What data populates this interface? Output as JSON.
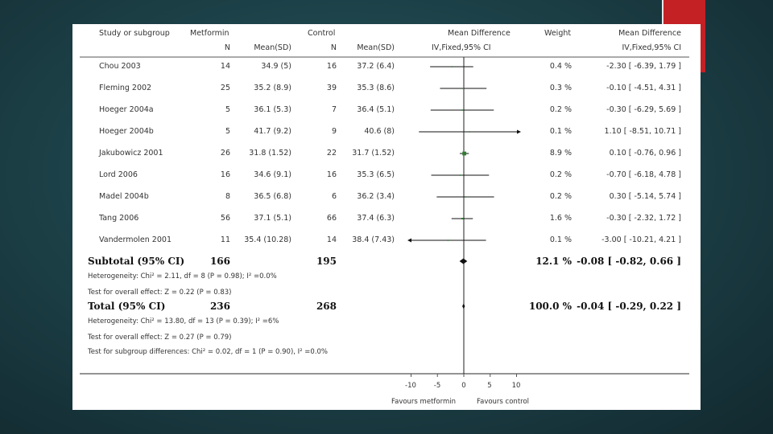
{
  "header": {
    "study": "Study or subgroup",
    "group1": "Metformin",
    "group2": "Control",
    "effect": "Mean Difference",
    "weight": "Weight",
    "effect_ci": "Mean Difference",
    "n1": "N",
    "mean1": "Mean(SD)",
    "n2": "N",
    "mean2": "Mean(SD)",
    "method": "IV,Fixed,95% CI",
    "method_ci": "IV,Fixed,95% CI"
  },
  "studies": [
    {
      "name": "Chou 2003",
      "n1": "14",
      "ms1": "34.9 (5)",
      "n2": "16",
      "ms2": "37.2 (6.4)",
      "weight": "0.4 %",
      "ci": "-2.30 [ -6.39, 1.79 ]"
    },
    {
      "name": "Fleming 2002",
      "n1": "25",
      "ms1": "35.2 (8.9)",
      "n2": "39",
      "ms2": "35.3 (8.6)",
      "weight": "0.3 %",
      "ci": "-0.10 [ -4.51, 4.31 ]"
    },
    {
      "name": "Hoeger 2004a",
      "n1": "5",
      "ms1": "36.1 (5.3)",
      "n2": "7",
      "ms2": "36.4 (5.1)",
      "weight": "0.2 %",
      "ci": "-0.30 [ -6.29, 5.69 ]"
    },
    {
      "name": "Hoeger 2004b",
      "n1": "5",
      "ms1": "41.7 (9.2)",
      "n2": "9",
      "ms2": "40.6 (8)",
      "weight": "0.1 %",
      "ci": "1.10 [ -8.51, 10.71 ]"
    },
    {
      "name": "Jakubowicz 2001",
      "n1": "26",
      "ms1": "31.8 (1.52)",
      "n2": "22",
      "ms2": "31.7 (1.52)",
      "weight": "8.9 %",
      "ci": "0.10 [ -0.76, 0.96 ]"
    },
    {
      "name": "Lord 2006",
      "n1": "16",
      "ms1": "34.6 (9.1)",
      "n2": "16",
      "ms2": "35.3 (6.5)",
      "weight": "0.2 %",
      "ci": "-0.70 [ -6.18, 4.78 ]"
    },
    {
      "name": "Madel 2004b",
      "n1": "8",
      "ms1": "36.5 (6.8)",
      "n2": "6",
      "ms2": "36.2 (3.4)",
      "weight": "0.2 %",
      "ci": "0.30 [ -5.14, 5.74 ]"
    },
    {
      "name": "Tang 2006",
      "n1": "56",
      "ms1": "37.1 (5.1)",
      "n2": "66",
      "ms2": "37.4 (6.3)",
      "weight": "1.6 %",
      "ci": "-0.30 [ -2.32, 1.72 ]"
    },
    {
      "name": "Vandermolen 2001",
      "n1": "11",
      "ms1": "35.4 (10.28)",
      "n2": "14",
      "ms2": "38.4 (7.43)",
      "weight": "0.1 %",
      "ci": "-3.00 [ -10.21, 4.21 ]"
    }
  ],
  "subtotal": {
    "label": "Subtotal (95% CI)",
    "n1": "166",
    "n2": "195",
    "weight": "12.1 %",
    "ci": "-0.08 [ -0.82, 0.66 ]"
  },
  "subtotal_het": "Heterogeneity: Chi² = 2.11, df = 8 (P = 0.98); I² =0.0%",
  "subtotal_test": "Test for overall effect: Z = 0.22 (P = 0.83)",
  "total": {
    "label": "Total (95% CI)",
    "n1": "236",
    "n2": "268",
    "weight": "100.0 %",
    "ci": "-0.04 [ -0.29, 0.22 ]"
  },
  "total_het": "Heterogeneity: Chi² = 13.80, df = 13 (P = 0.39); I² =6%",
  "total_test": "Test for overall effect: Z = 0.27 (P = 0.79)",
  "subgroup_test": "Test for subgroup differences: Chi² = 0.02, df = 1 (P = 0.90), I² =0.0%",
  "axis": {
    "ticks": [
      "-10",
      "-5",
      "0",
      "5",
      "10"
    ],
    "favours_left": "Favours metformin",
    "favours_right": "Favours control"
  },
  "colors": {
    "background": "#1d4249",
    "accent": "#c42125",
    "panel": "#ffffff",
    "marker": "#2e7d32"
  },
  "chart_data": {
    "type": "forest",
    "title": "Mean Difference (IV, Fixed, 95% CI)",
    "xlim": [
      -10,
      10
    ],
    "xticks": [
      -10,
      -5,
      0,
      5,
      10
    ],
    "studies": [
      {
        "name": "Chou 2003",
        "md": -2.3,
        "lo": -6.39,
        "hi": 1.79,
        "weight": 0.4
      },
      {
        "name": "Fleming 2002",
        "md": -0.1,
        "lo": -4.51,
        "hi": 4.31,
        "weight": 0.3
      },
      {
        "name": "Hoeger 2004a",
        "md": -0.3,
        "lo": -6.29,
        "hi": 5.69,
        "weight": 0.2
      },
      {
        "name": "Hoeger 2004b",
        "md": 1.1,
        "lo": -8.51,
        "hi": 10.71,
        "weight": 0.1
      },
      {
        "name": "Jakubowicz 2001",
        "md": 0.1,
        "lo": -0.76,
        "hi": 0.96,
        "weight": 8.9
      },
      {
        "name": "Lord 2006",
        "md": -0.7,
        "lo": -6.18,
        "hi": 4.78,
        "weight": 0.2
      },
      {
        "name": "Madel 2004b",
        "md": 0.3,
        "lo": -5.14,
        "hi": 5.74,
        "weight": 0.2
      },
      {
        "name": "Tang 2006",
        "md": -0.3,
        "lo": -2.32,
        "hi": 1.72,
        "weight": 1.6
      },
      {
        "name": "Vandermolen 2001",
        "md": -3.0,
        "lo": -10.21,
        "hi": 4.21,
        "weight": 0.1
      }
    ],
    "pooled": [
      {
        "name": "Subtotal (95% CI)",
        "md": -0.08,
        "lo": -0.82,
        "hi": 0.66
      },
      {
        "name": "Total (95% CI)",
        "md": -0.04,
        "lo": -0.29,
        "hi": 0.22
      }
    ]
  }
}
